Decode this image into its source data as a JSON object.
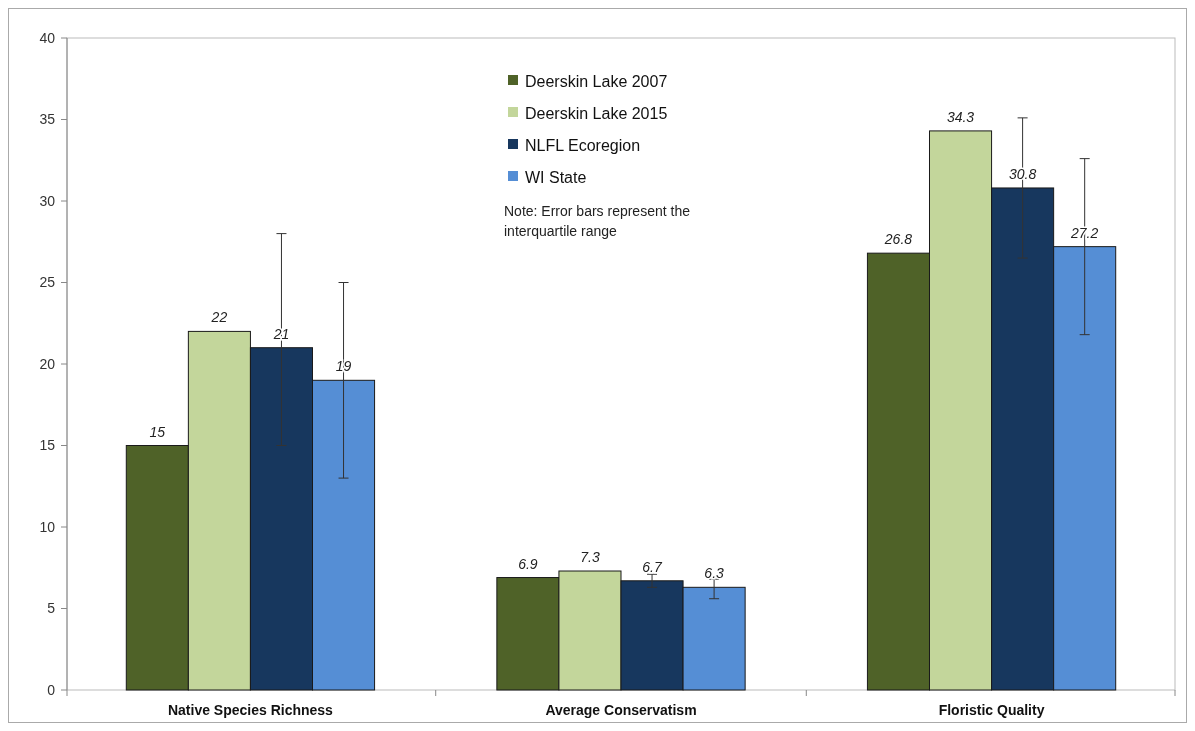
{
  "chart_data": {
    "type": "bar",
    "categories": [
      "Native Species Richness",
      "Average Conservatism",
      "Floristic Quality"
    ],
    "series": [
      {
        "name": "Deerskin Lake 2007",
        "color": "#4f6228",
        "values": [
          15,
          6.9,
          26.8
        ]
      },
      {
        "name": "Deerskin Lake 2015",
        "color": "#c3d69b",
        "values": [
          22,
          7.3,
          34.3
        ]
      },
      {
        "name": "NLFL Ecoregion",
        "color": "#17375e",
        "values": [
          21,
          6.7,
          30.8
        ],
        "errors": [
          [
            15,
            28
          ],
          [
            6.3,
            7.1
          ],
          [
            26.5,
            35.1
          ]
        ]
      },
      {
        "name": "WI State",
        "color": "#558ed5",
        "values": [
          19,
          6.3,
          27.2
        ],
        "errors": [
          [
            13,
            25
          ],
          [
            5.6,
            6.8
          ],
          [
            21.8,
            32.6
          ]
        ]
      }
    ],
    "ylim": [
      0,
      40
    ],
    "yticks": [
      0,
      5,
      10,
      15,
      20,
      25,
      30,
      35,
      40
    ],
    "grid": false,
    "legend": "top",
    "data_labels": true,
    "annotations": [
      "Note: Error bars represent the interquartile range"
    ]
  }
}
